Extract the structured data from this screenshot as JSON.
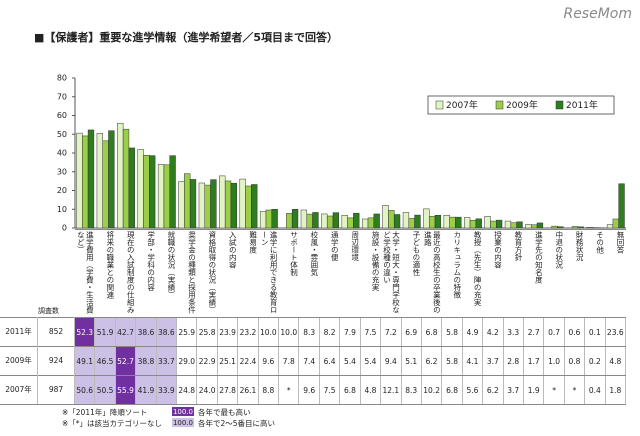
{
  "title": "■【保護者】重要な進学情報（進学希望者／5項目まで回答）",
  "watermark": "ReseMom",
  "chart_data": {
    "type": "bar",
    "categories": [
      "進学費用（学費・生活費など）",
      "将来の職業との関連",
      "現在の入試制度の仕組み",
      "学部・学科の内容",
      "就職の状況（実績）",
      "奨学金の種類と採用条件",
      "資格取得の状況（実績）",
      "入試の内容",
      "難易度",
      "進学に利用できる教育ローン",
      "サポート体制",
      "校風・雰囲気",
      "通学の便",
      "周辺環境",
      "施設・設備の充実",
      "大学・短大・専門学校など学校種の違い",
      "子どもの適性",
      "最近の高校生の卒業後の進路",
      "カリキュラムの特徴",
      "教授（先生）陣の充実",
      "授業の内容",
      "教育方針",
      "進学先の知名度",
      "中退の状況",
      "財務状況",
      "その他",
      "無回答"
    ],
    "series": [
      {
        "name": "2007年",
        "color": "#e2f4c4",
        "sample_size": 987,
        "values": [
          50.6,
          50.5,
          55.9,
          41.9,
          33.9,
          24.8,
          24.0,
          27.8,
          26.1,
          8.8,
          null,
          9.6,
          7.5,
          6.8,
          4.8,
          12.1,
          8.3,
          10.2,
          6.8,
          5.6,
          6.2,
          3.7,
          1.9,
          null,
          null,
          0.4,
          1.8
        ],
        "value_labels": [
          "50.6",
          "50.5",
          "55.9",
          "41.9",
          "33.9",
          "24.8",
          "24.0",
          "27.8",
          "26.1",
          "8.8",
          "*",
          "9.6",
          "7.5",
          "6.8",
          "4.8",
          "12.1",
          "8.3",
          "10.2",
          "6.8",
          "5.6",
          "6.2",
          "3.7",
          "1.9",
          "*",
          "*",
          "0.4",
          "1.8"
        ]
      },
      {
        "name": "2009年",
        "color": "#9bcf4a",
        "sample_size": 924,
        "values": [
          49.1,
          46.5,
          52.7,
          38.8,
          33.7,
          29.0,
          22.9,
          25.1,
          22.4,
          9.6,
          7.8,
          7.4,
          6.4,
          5.4,
          5.4,
          9.4,
          5.1,
          6.2,
          5.8,
          4.1,
          3.7,
          2.8,
          1.7,
          1.0,
          0.8,
          0.2,
          4.8
        ],
        "value_labels": [
          "49.1",
          "46.5",
          "52.7",
          "38.8",
          "33.7",
          "29.0",
          "22.9",
          "25.1",
          "22.4",
          "9.6",
          "7.8",
          "7.4",
          "6.4",
          "5.4",
          "5.4",
          "9.4",
          "5.1",
          "6.2",
          "5.8",
          "4.1",
          "3.7",
          "2.8",
          "1.7",
          "1.0",
          "0.8",
          "0.2",
          "4.8"
        ]
      },
      {
        "name": "2011年",
        "color": "#2e7d1e",
        "sample_size": 852,
        "values": [
          52.3,
          51.9,
          42.7,
          38.6,
          38.6,
          25.9,
          25.8,
          23.9,
          23.2,
          10.0,
          10.0,
          8.3,
          8.2,
          7.9,
          7.5,
          7.2,
          6.9,
          6.8,
          5.8,
          4.9,
          4.2,
          3.3,
          2.7,
          0.7,
          0.6,
          0.1,
          23.6
        ],
        "value_labels": [
          "52.3",
          "51.9",
          "42.7",
          "38.6",
          "38.6",
          "25.9",
          "25.8",
          "23.9",
          "23.2",
          "10.0",
          "10.0",
          "8.3",
          "8.2",
          "7.9",
          "7.5",
          "7.2",
          "6.9",
          "6.8",
          "5.8",
          "4.9",
          "4.2",
          "3.3",
          "2.7",
          "0.7",
          "0.6",
          "0.1",
          "23.6"
        ]
      }
    ],
    "sample_size_label": "調査数",
    "ylim": [
      0,
      80
    ],
    "yticks": [
      0,
      10,
      20,
      30,
      40,
      50,
      60,
      70,
      80
    ],
    "grid": false,
    "legend": "top-right",
    "notes": [
      "※「2011年」降順ソート",
      "※「*」は該当カテゴリーなし"
    ],
    "highlight_legend": [
      {
        "sample": "100.0",
        "label": "各年で最も高い",
        "color": "#7030a0",
        "text_color": "#ffffff",
        "rank_from": 1,
        "rank_to": 1
      },
      {
        "sample": "100.0",
        "label": "各年で2～5番目に高い",
        "color": "#ccc0e6",
        "text_color": "#222222",
        "rank_from": 2,
        "rank_to": 5
      }
    ]
  }
}
